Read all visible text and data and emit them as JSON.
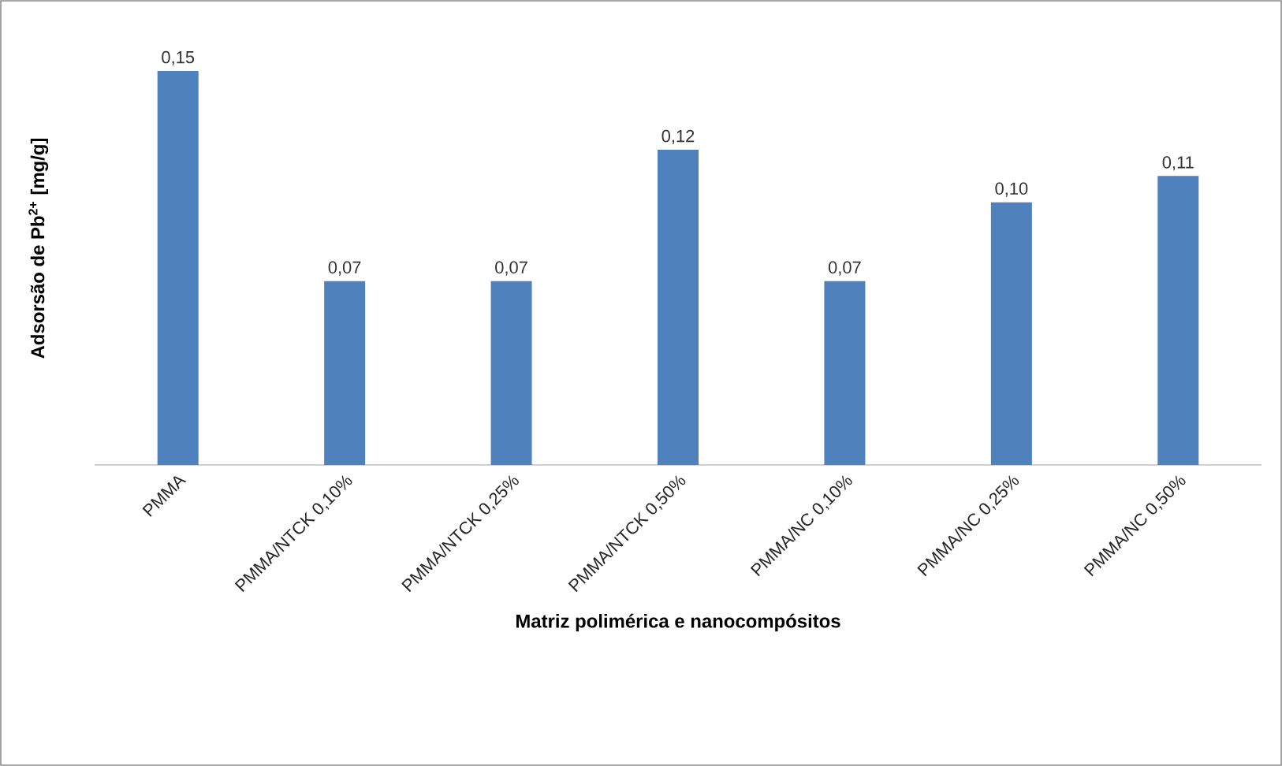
{
  "chart_data": {
    "type": "bar",
    "xlabel": "**Matriz polimérica e nanocompósitos**",
    "ylabel": "**Adsorsão de Pb$^{2+}$ [mg/g]**",
    "categories": [
      "PMMA",
      "PMMA/NTCK 0,10%",
      "PMMA/NTCK 0,25%",
      "PMMA/NTCK 0,50%",
      "PMMA/NC 0,10%",
      "PMMA/NC 0,25%",
      "PMMA/NC 0,50%"
    ],
    "values": [
      0.15,
      0.07,
      0.07,
      0.12,
      0.07,
      0.1,
      0.11
    ],
    "value_labels": [
      "0,15",
      "0,07",
      "0,07",
      "0,12",
      "0,07",
      "0,10",
      "0,11"
    ],
    "color": "#4f81bd",
    "tick_labels": "x"
  }
}
